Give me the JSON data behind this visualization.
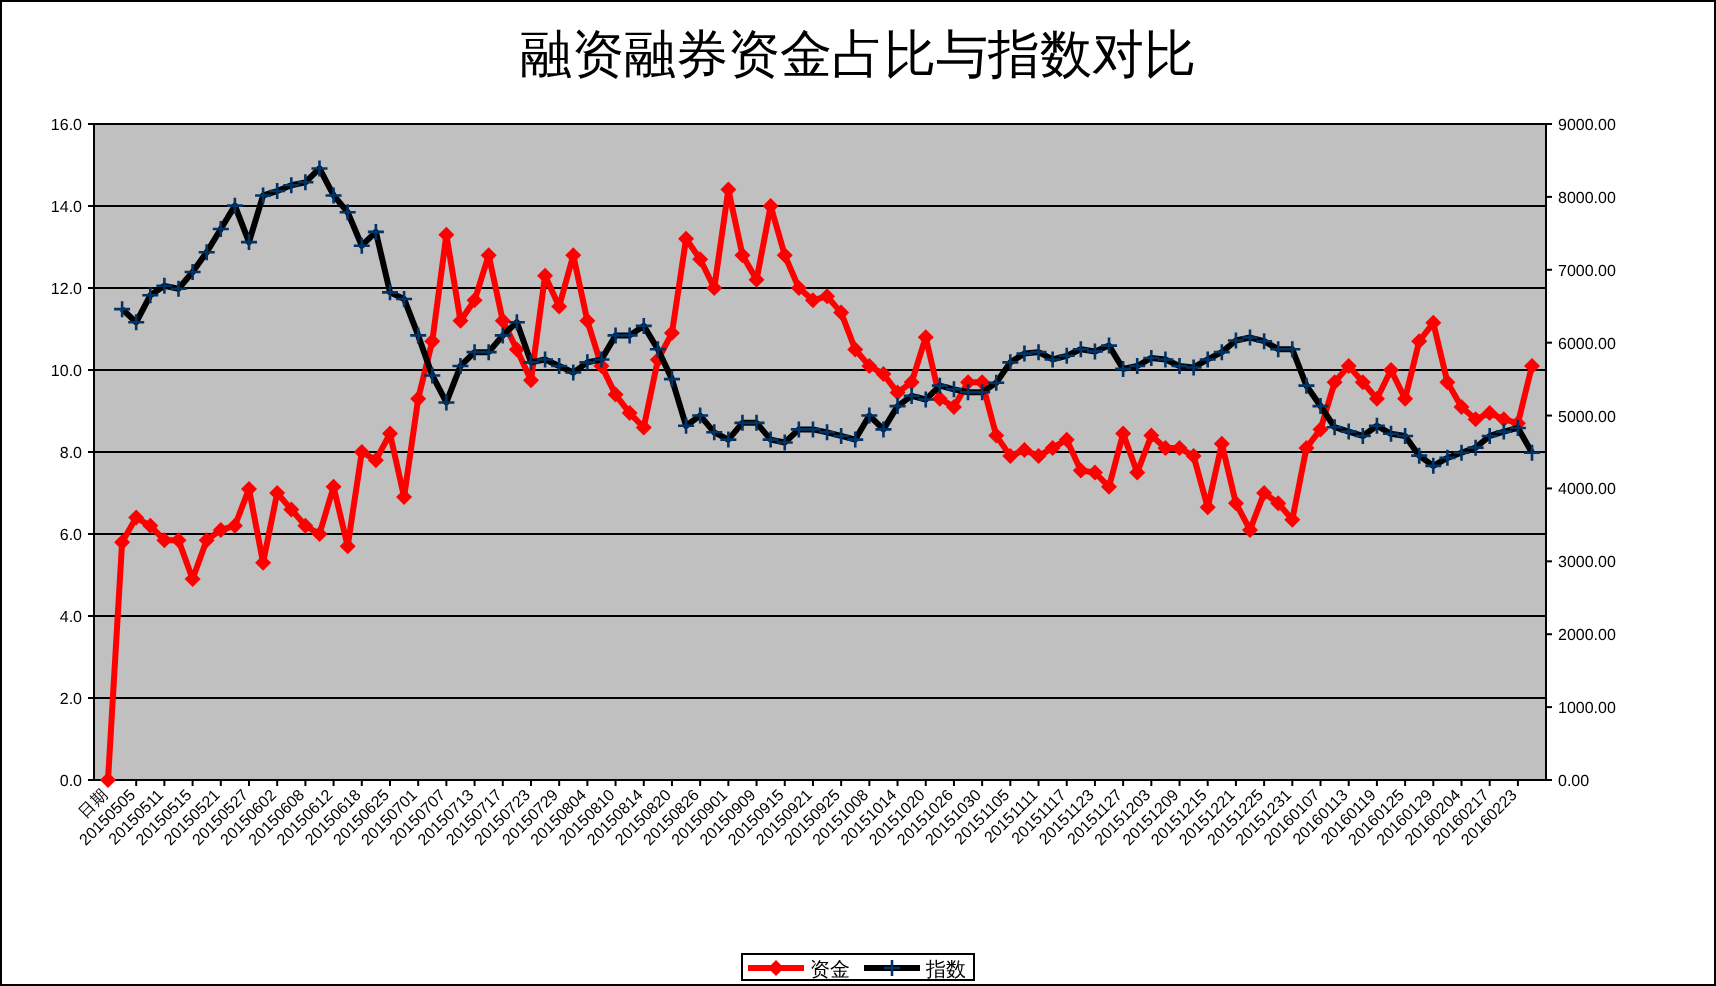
{
  "chart_data": {
    "type": "line",
    "title": "融资融券资金占比与指数对比",
    "categories": [
      "日期",
      null,
      "20150505",
      null,
      "20150511",
      null,
      "20150515",
      null,
      "20150521",
      null,
      "20150527",
      null,
      "20150602",
      null,
      "20150608",
      null,
      "20150612",
      null,
      "20150618",
      null,
      "20150625",
      null,
      "20150701",
      null,
      "20150707",
      null,
      "20150713",
      null,
      "20150717",
      null,
      "20150723",
      null,
      "20150729",
      null,
      "20150804",
      null,
      "20150810",
      null,
      "20150814",
      null,
      "20150820",
      null,
      "20150826",
      null,
      "20150901",
      null,
      "20150909",
      null,
      "20150915",
      null,
      "20150921",
      null,
      "20150925",
      null,
      "20151008",
      null,
      "20151014",
      null,
      "20151020",
      null,
      "20151026",
      null,
      "20151030",
      null,
      "20151105",
      null,
      "20151111",
      null,
      "20151117",
      null,
      "20151123",
      null,
      "20151127",
      null,
      "20151203",
      null,
      "20151209",
      null,
      "20151215",
      null,
      "20151221",
      null,
      "20151225",
      null,
      "20151231",
      null,
      "20160107",
      null,
      "20160113",
      null,
      "20160119",
      null,
      "20160125",
      null,
      "20160129",
      null,
      "20160204",
      null,
      "20160217",
      null,
      "20160223",
      null
    ],
    "series": [
      {
        "name": "资金",
        "color": "#ff0000",
        "marker": "diamond",
        "values": [
          0,
          5.8,
          6.4,
          6.2,
          5.85,
          5.85,
          4.9,
          5.85,
          6.1,
          6.2,
          7.1,
          5.3,
          7.0,
          6.6,
          6.2,
          6.0,
          7.15,
          5.7,
          8.0,
          7.8,
          8.45,
          6.9,
          9.3,
          10.7,
          13.3,
          11.2,
          11.7,
          12.8,
          11.2,
          10.5,
          9.75,
          12.3,
          11.55,
          12.8,
          11.2,
          10.1,
          9.4,
          8.95,
          8.6,
          10.25,
          10.9,
          13.2,
          12.7,
          12.0,
          14.4,
          12.8,
          12.2,
          14.0,
          12.8,
          12.0,
          11.7,
          11.8,
          11.4,
          10.5,
          10.1,
          9.9,
          9.45,
          9.7,
          10.8,
          9.3,
          9.1,
          9.7,
          9.7,
          8.4,
          7.9,
          8.05,
          7.9,
          8.1,
          8.3,
          7.55,
          7.5,
          7.15,
          8.45,
          7.5,
          8.4,
          8.1,
          8.1,
          7.9,
          6.65,
          8.2,
          6.75,
          6.1,
          7.0,
          6.75,
          6.35,
          8.1,
          8.55,
          9.7,
          10.1,
          9.7,
          9.3,
          10.0,
          9.3,
          10.7,
          11.15,
          9.7,
          9.1,
          8.8,
          8.95,
          8.8,
          8.7,
          10.1
        ]
      },
      {
        "name": "指数",
        "color": "#000000",
        "marker": "cross",
        "axis": "y2",
        "values": [
          null,
          6460,
          6280,
          6650,
          6780,
          6740,
          6970,
          7240,
          7560,
          7880,
          7380,
          8020,
          8080,
          8160,
          8200,
          8390,
          8020,
          7790,
          7330,
          7520,
          6690,
          6600,
          6100,
          5550,
          5180,
          5680,
          5870,
          5870,
          6100,
          6280,
          5730,
          5770,
          5680,
          5590,
          5730,
          5770,
          6100,
          6100,
          6230,
          5910,
          5500,
          4860,
          5000,
          4770,
          4670,
          4900,
          4900,
          4670,
          4630,
          4810,
          4810,
          4770,
          4720,
          4670,
          5000,
          4810,
          5130,
          5270,
          5220,
          5410,
          5360,
          5320,
          5320,
          5450,
          5730,
          5850,
          5870,
          5770,
          5820,
          5910,
          5880,
          5960,
          5640,
          5680,
          5790,
          5770,
          5680,
          5660,
          5770,
          5870,
          6030,
          6070,
          6020,
          5910,
          5910,
          5410,
          5130,
          4840,
          4780,
          4720,
          4860,
          4750,
          4720,
          4450,
          4310,
          4420,
          4490,
          4560,
          4720,
          4780,
          4830,
          4490
        ]
      }
    ],
    "ylim": [
      0,
      16
    ],
    "yticks": [
      {
        "value": 0,
        "label": "0.0"
      },
      {
        "value": 2,
        "label": "2.0"
      },
      {
        "value": 4,
        "label": "4.0"
      },
      {
        "value": 6,
        "label": "6.0"
      },
      {
        "value": 8,
        "label": "8.0"
      },
      {
        "value": 10,
        "label": "10.0"
      },
      {
        "value": 12,
        "label": "12.0"
      },
      {
        "value": 14,
        "label": "14.0"
      },
      {
        "value": 16,
        "label": "16.0"
      }
    ],
    "y2lim": [
      0,
      9000
    ],
    "y2ticks": [
      {
        "value": 0,
        "label": "0.00"
      },
      {
        "value": 1000,
        "label": "1000.00"
      },
      {
        "value": 2000,
        "label": "2000.00"
      },
      {
        "value": 3000,
        "label": "3000.00"
      },
      {
        "value": 4000,
        "label": "4000.00"
      },
      {
        "value": 5000,
        "label": "5000.00"
      },
      {
        "value": 6000,
        "label": "6000.00"
      },
      {
        "value": 7000,
        "label": "7000.00"
      },
      {
        "value": 8000,
        "label": "8000.00"
      },
      {
        "value": 9000,
        "label": "9000.00"
      }
    ],
    "grid": "y",
    "legend": "bottom"
  }
}
